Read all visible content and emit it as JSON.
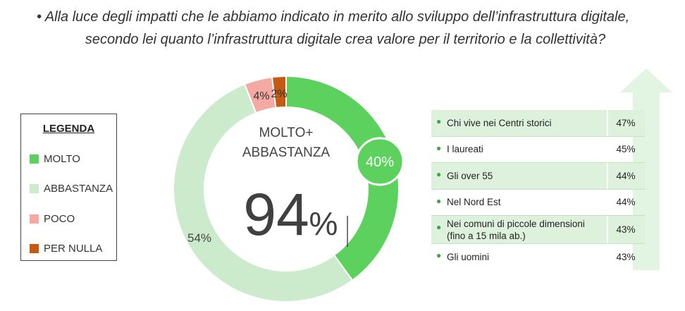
{
  "question": {
    "line1": "• Alla luce degli impatti che le abbiamo indicato in merito allo sviluppo dell’infrastruttura digitale,",
    "line2": "secondo lei quanto l’infrastruttura digitale crea valore per il territorio e la collettività?"
  },
  "legend": {
    "title": "LEGENDA",
    "items": [
      {
        "label": "MOLTO",
        "color": "#5dd15d"
      },
      {
        "label": "ABBASTANZA",
        "color": "#ccebcc"
      },
      {
        "label": "POCO",
        "color": "#f4aaa2"
      },
      {
        "label": "PER NULLA",
        "color": "#c55a11"
      }
    ]
  },
  "center": {
    "label_line1": "MOLTO+",
    "label_line2": "ABBASTANZA",
    "value": "94",
    "unit": "%"
  },
  "chart_data": {
    "type": "pie",
    "donut": true,
    "slices": [
      {
        "name": "MOLTO",
        "value": 40,
        "label": "40%",
        "color": "#5dd15d"
      },
      {
        "name": "ABBASTANZA",
        "value": 54,
        "label": "54%",
        "color": "#ccebcc"
      },
      {
        "name": "POCO",
        "value": 4,
        "label": "4%",
        "color": "#f4aaa2"
      },
      {
        "name": "PER NULLA",
        "value": 2,
        "label": "2%",
        "color": "#c55a11"
      }
    ]
  },
  "segments": {
    "rows": [
      {
        "label": "Chi vive nei Centri storici",
        "value": "47%"
      },
      {
        "label": "I laureati",
        "value": "45%"
      },
      {
        "label": "Gli over 55",
        "value": "44%"
      },
      {
        "label": "Nel Nord Est",
        "value": "44%"
      },
      {
        "label": "Nei comuni di piccole dimensioni (fino a 15 mila ab.)",
        "value": "43%"
      },
      {
        "label": "Gli uomini",
        "value": "43%"
      }
    ]
  },
  "colors": {
    "arrow": "#e2f4e2",
    "row_shade": "#ddf1dd",
    "row_border": "#bfe5bf"
  }
}
